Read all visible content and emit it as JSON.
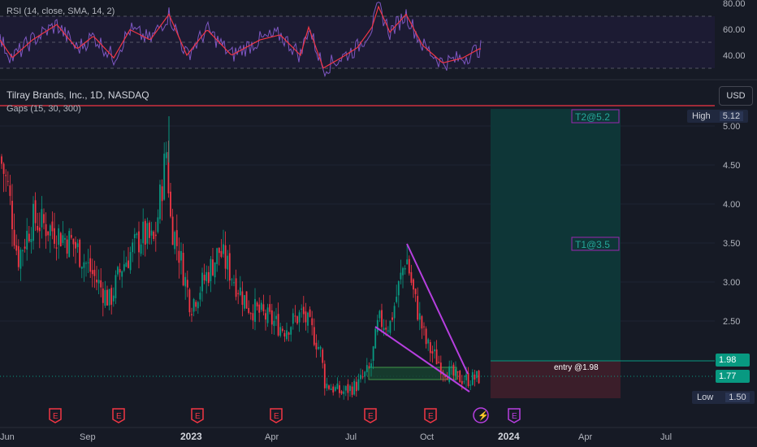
{
  "rsi": {
    "label": "RSI (14, close, SMA, 14, 2)",
    "ticks": [
      "80.00",
      "60.00",
      "40.00"
    ],
    "levels": [
      80,
      60,
      40
    ]
  },
  "header": {
    "symbol": "Tilray Brands, Inc., 1D, NASDAQ",
    "indicator": "Gaps (15, 30, 300)",
    "currency": "USD"
  },
  "chart_data": {
    "type": "candlestick",
    "price_ticks": [
      5.0,
      4.5,
      4.0,
      3.5,
      3.0,
      2.5
    ],
    "price_tick_labels": [
      "5.00",
      "4.50",
      "4.00",
      "3.50",
      "3.00",
      "2.50"
    ],
    "x_tick_labels": [
      "Jun",
      "Sep",
      "2023",
      "Apr",
      "Jul",
      "Oct",
      "2024",
      "Apr",
      "Jul"
    ],
    "high": {
      "label": "High",
      "value": "5.12"
    },
    "low": {
      "label": "Low",
      "value": "1.50"
    },
    "entry_price": {
      "value": "1.98",
      "color": "#089981"
    },
    "last_price": {
      "value": "1.77",
      "color": "#089981"
    },
    "entry_label": "entry @1.98",
    "targets": [
      {
        "label": "T1@3.5",
        "price": 3.5
      },
      {
        "label": "T2@5.2",
        "price": 5.2
      }
    ],
    "price_anchors": [
      [
        0,
        4.6
      ],
      [
        10,
        4.2
      ],
      [
        22,
        3.3
      ],
      [
        40,
        3.8
      ],
      [
        60,
        3.7
      ],
      [
        90,
        3.5
      ],
      [
        120,
        3.0
      ],
      [
        135,
        2.75
      ],
      [
        150,
        3.2
      ],
      [
        175,
        3.6
      ],
      [
        190,
        3.5
      ],
      [
        205,
        4.7
      ],
      [
        210,
        3.8
      ],
      [
        220,
        3.4
      ],
      [
        235,
        2.7
      ],
      [
        255,
        3.1
      ],
      [
        270,
        3.4
      ],
      [
        290,
        3.0
      ],
      [
        305,
        2.7
      ],
      [
        320,
        2.6
      ],
      [
        350,
        2.4
      ],
      [
        372,
        2.6
      ],
      [
        385,
        2.35
      ],
      [
        395,
        2.1
      ],
      [
        400,
        1.7
      ],
      [
        420,
        1.58
      ],
      [
        440,
        1.68
      ],
      [
        456,
        1.9
      ],
      [
        466,
        2.5
      ],
      [
        480,
        2.45
      ],
      [
        500,
        3.35
      ],
      [
        510,
        2.8
      ],
      [
        525,
        2.2
      ],
      [
        545,
        1.9
      ],
      [
        560,
        1.78
      ],
      [
        575,
        1.75
      ],
      [
        592,
        1.78
      ]
    ],
    "rsi_anchors": [
      [
        0,
        52
      ],
      [
        15,
        38
      ],
      [
        40,
        52
      ],
      [
        70,
        64
      ],
      [
        95,
        45
      ],
      [
        115,
        55
      ],
      [
        140,
        38
      ],
      [
        160,
        60
      ],
      [
        185,
        52
      ],
      [
        208,
        72
      ],
      [
        230,
        40
      ],
      [
        255,
        60
      ],
      [
        285,
        40
      ],
      [
        320,
        52
      ],
      [
        345,
        56
      ],
      [
        370,
        40
      ],
      [
        380,
        62
      ],
      [
        398,
        30
      ],
      [
        420,
        38
      ],
      [
        440,
        46
      ],
      [
        458,
        62
      ],
      [
        466,
        78
      ],
      [
        480,
        58
      ],
      [
        500,
        72
      ],
      [
        520,
        48
      ],
      [
        545,
        34
      ],
      [
        570,
        38
      ],
      [
        590,
        45
      ]
    ]
  },
  "events": [
    {
      "icon": "E",
      "kind": "earnings"
    },
    {
      "icon": "E",
      "kind": "earnings"
    },
    {
      "icon": "E",
      "kind": "earnings"
    },
    {
      "icon": "E",
      "kind": "earnings"
    },
    {
      "icon": "E",
      "kind": "earnings"
    },
    {
      "icon": "E",
      "kind": "earnings"
    },
    {
      "icon": "E",
      "kind": "earnings"
    },
    {
      "icon": "lightning-icon",
      "kind": "dividend-split"
    },
    {
      "icon": "E",
      "kind": "earnings-upcoming"
    }
  ],
  "colors": {
    "up": "#089981",
    "down": "#f23645",
    "rsi_line": "#7e57c2",
    "rsi_ma": "#f23645",
    "wedge": "#b73fe0",
    "target_zone": "#0d3a3a",
    "stop_zone": "#3f1f2b"
  }
}
